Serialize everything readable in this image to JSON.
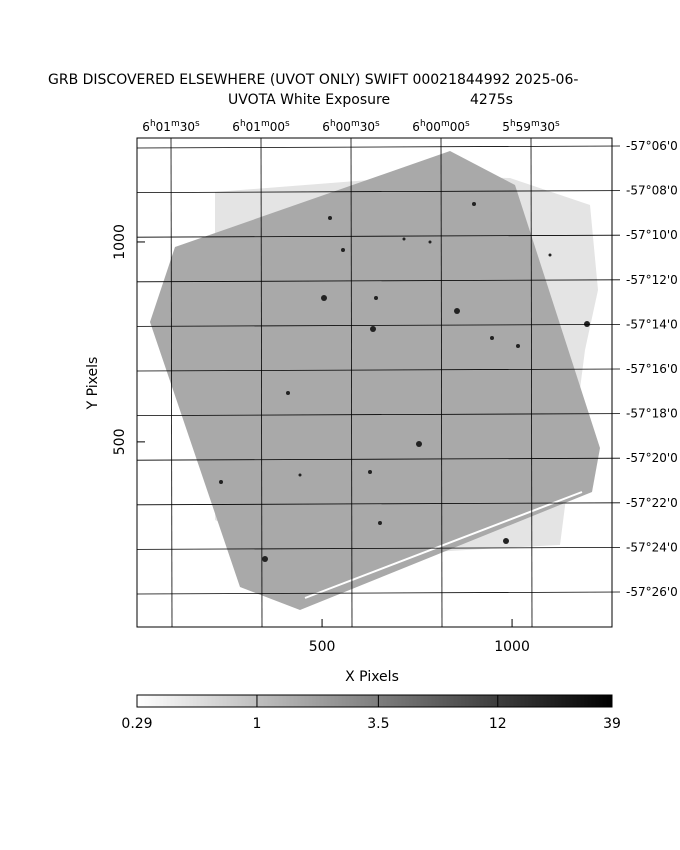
{
  "chart_data": {
    "type": "image",
    "title": "GRB DISCOVERED ELSEWHERE (UVOT ONLY) SWIFT 00021844992 2025-06-",
    "subtitle": "UVOTA White Exposure",
    "exposure": "4275s",
    "xlabel": "X Pixels",
    "ylabel": "Y Pixels",
    "xlim": [
      13,
      1263
    ],
    "ylim": [
      37,
      1260
    ],
    "xticks": [
      500,
      1000
    ],
    "yticks": [
      500,
      1000
    ],
    "ra_ticks": [
      "6h01m30s",
      "6h01m00s",
      "6h00m30s",
      "6h00m00s",
      "5h59m30s"
    ],
    "dec_ticks": [
      "-57°06'0",
      "-57°08'0",
      "-57°10'0",
      "-57°12'0",
      "-57°14'0",
      "-57°16'0",
      "-57°18'0",
      "-57°20'0",
      "-57°22'0",
      "-57°24'0",
      "-57°26'0"
    ],
    "colorbar": {
      "scale": "log",
      "lim": [
        0.29,
        39
      ],
      "ticks": [
        0.29,
        1,
        3.5,
        12,
        39
      ]
    }
  }
}
